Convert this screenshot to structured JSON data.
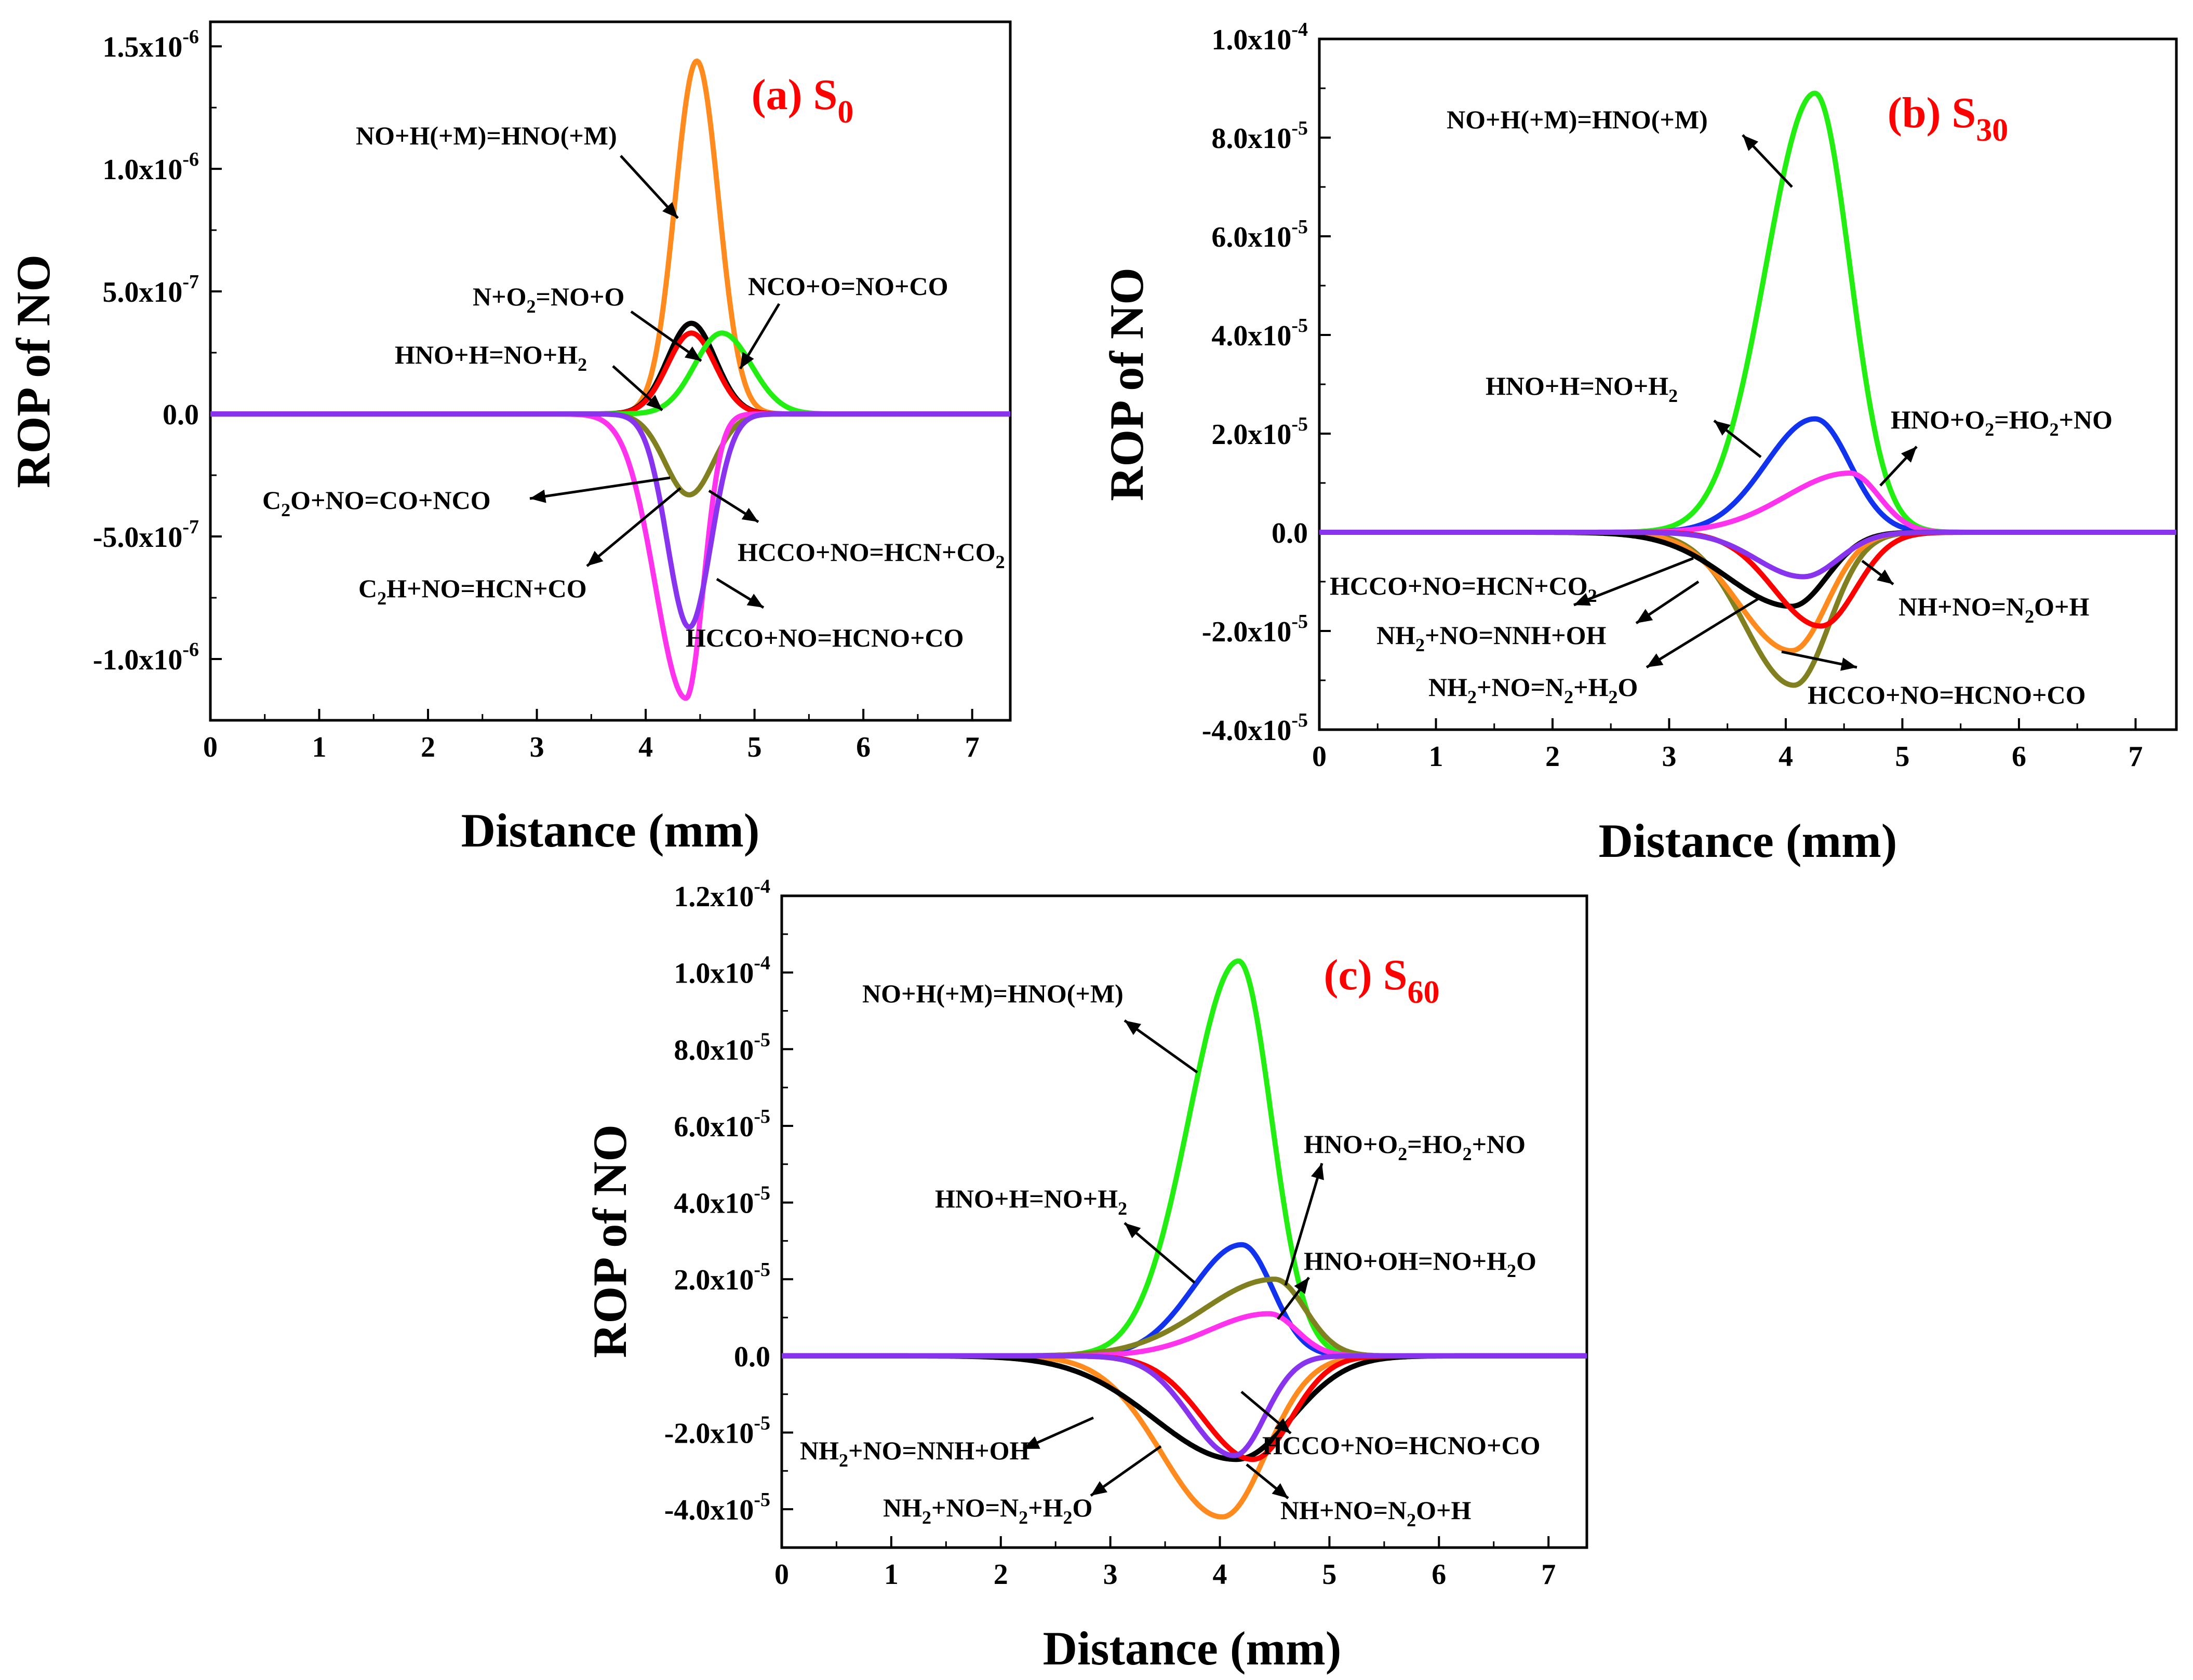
{
  "colors": {
    "black": "#000000",
    "red": "#ff0000",
    "green": "#22ee11",
    "blue": "#1133ee",
    "orange": "#ff8a1e",
    "magenta": "#ff33ee",
    "olive": "#808020",
    "purple": "#8833ee",
    "title": "#ff0000"
  },
  "chart_data": [
    {
      "type": "line",
      "title": "(a) S0",
      "title_main": "(a) S",
      "title_sub": "0",
      "xlabel": "Distance (mm)",
      "ylabel": "ROP of NO",
      "xlim": [
        0,
        7.35
      ],
      "ylim": [
        -1.25e-06,
        1.6e-06
      ],
      "xticks": [
        0,
        1,
        2,
        3,
        4,
        5,
        6,
        7
      ],
      "xtick_labels": [
        "0",
        "1",
        "2",
        "3",
        "4",
        "5",
        "6",
        "7"
      ],
      "yticks": [
        -1e-06,
        -5e-07,
        0,
        5e-07,
        1e-06,
        1.5e-06
      ],
      "ytick_labels": [
        {
          "base": "-1.0x10",
          "exp": "-6"
        },
        {
          "base": "-5.0x10",
          "exp": "-7"
        },
        {
          "base": "0.0",
          "exp": ""
        },
        {
          "base": "5.0x10",
          "exp": "-7"
        },
        {
          "base": "1.0x10",
          "exp": "-6"
        },
        {
          "base": "1.5x10",
          "exp": "-6"
        }
      ],
      "series": [
        {
          "color": "#ff8a1e",
          "peak": 1.44e-06,
          "center": 4.47,
          "width_left": 0.2,
          "width_right": 0.2
        },
        {
          "color": "#000000",
          "peak": 3.7e-07,
          "center": 4.42,
          "width_left": 0.22,
          "width_right": 0.22
        },
        {
          "color": "#ff0000",
          "peak": 3.3e-07,
          "center": 4.42,
          "width_left": 0.22,
          "width_right": 0.22
        },
        {
          "color": "#22ee11",
          "peak": 3.3e-07,
          "center": 4.7,
          "width_left": 0.25,
          "width_right": 0.27
        },
        {
          "color": "#808020",
          "peak": -3.3e-07,
          "center": 4.4,
          "width_left": 0.22,
          "width_right": 0.22
        },
        {
          "color": "#ff33ee",
          "peak": -1.16e-06,
          "center": 4.37,
          "width_left": 0.28,
          "width_right": 0.16
        },
        {
          "color": "#8833ee",
          "peak": -8.7e-07,
          "center": 4.4,
          "width_left": 0.2,
          "width_right": 0.2
        }
      ],
      "annotations": [
        {
          "parts": [
            [
              "NO+H(+M)=HNO(+M)",
              ""
            ]
          ]
        },
        {
          "parts": [
            [
              "N+O",
              ""
            ],
            [
              "2",
              "sub"
            ],
            [
              "=NO+O",
              ""
            ]
          ]
        },
        {
          "parts": [
            [
              "NCO+O=NO+CO",
              ""
            ]
          ]
        },
        {
          "parts": [
            [
              "HNO+H=NO+H",
              ""
            ],
            [
              "2",
              "sub"
            ]
          ]
        },
        {
          "parts": [
            [
              "C",
              ""
            ],
            [
              "2",
              "sub"
            ],
            [
              "O+NO=CO+NCO",
              ""
            ]
          ]
        },
        {
          "parts": [
            [
              "HCCO+NO=HCN+CO",
              ""
            ],
            [
              "2",
              "sub"
            ]
          ]
        },
        {
          "parts": [
            [
              "C",
              ""
            ],
            [
              "2",
              "sub"
            ],
            [
              "H+NO=HCN+CO",
              ""
            ]
          ]
        },
        {
          "parts": [
            [
              "HCCO+NO=HCNO+CO",
              ""
            ]
          ]
        }
      ]
    },
    {
      "type": "line",
      "title": "(b) S30",
      "title_main": "(b) S",
      "title_sub": "30",
      "xlabel": "Distance (mm)",
      "ylabel": "ROP of NO",
      "xlim": [
        0,
        7.35
      ],
      "ylim": [
        -4e-05,
        0.0001
      ],
      "xticks": [
        0,
        1,
        2,
        3,
        4,
        5,
        6,
        7
      ],
      "xtick_labels": [
        "0",
        "1",
        "2",
        "3",
        "4",
        "5",
        "6",
        "7"
      ],
      "yticks": [
        -4e-05,
        -2e-05,
        0,
        2e-05,
        4e-05,
        6e-05,
        8e-05,
        0.0001
      ],
      "ytick_labels": [
        {
          "base": "-4.0x10",
          "exp": "-5"
        },
        {
          "base": "-2.0x10",
          "exp": "-5"
        },
        {
          "base": "0.0",
          "exp": ""
        },
        {
          "base": "2.0x10",
          "exp": "-5"
        },
        {
          "base": "4.0x10",
          "exp": "-5"
        },
        {
          "base": "6.0x10",
          "exp": "-5"
        },
        {
          "base": "8.0x10",
          "exp": "-5"
        },
        {
          "base": "1.0x10",
          "exp": "-4"
        }
      ],
      "series": [
        {
          "color": "#22ee11",
          "peak": 8.9e-05,
          "center": 4.25,
          "width_left": 0.42,
          "width_right": 0.3
        },
        {
          "color": "#1133ee",
          "peak": 2.3e-05,
          "center": 4.25,
          "width_left": 0.42,
          "width_right": 0.3
        },
        {
          "color": "#ff33ee",
          "peak": 1.2e-05,
          "center": 4.55,
          "width_left": 0.55,
          "width_right": 0.25
        },
        {
          "color": "#808020",
          "peak": -3.1e-05,
          "center": 4.07,
          "width_left": 0.42,
          "width_right": 0.3
        },
        {
          "color": "#ff8a1e",
          "peak": -2.4e-05,
          "center": 4.05,
          "width_left": 0.45,
          "width_right": 0.3
        },
        {
          "color": "#000000",
          "peak": -1.5e-05,
          "center": 4.05,
          "width_left": 0.55,
          "width_right": 0.3
        },
        {
          "color": "#ff0000",
          "peak": -1.9e-05,
          "center": 4.3,
          "width_left": 0.4,
          "width_right": 0.3
        },
        {
          "color": "#8833ee",
          "peak": -9e-06,
          "center": 4.15,
          "width_left": 0.4,
          "width_right": 0.3
        }
      ],
      "annotations": [
        {
          "parts": [
            [
              "NO+H(+M)=HNO(+M)",
              ""
            ]
          ]
        },
        {
          "parts": [
            [
              "HNO+H=NO+H",
              ""
            ],
            [
              "2",
              "sub"
            ]
          ]
        },
        {
          "parts": [
            [
              "HNO+O",
              ""
            ],
            [
              "2",
              "sub"
            ],
            [
              "=HO",
              ""
            ],
            [
              "2",
              "sub"
            ],
            [
              "+NO",
              ""
            ]
          ]
        },
        {
          "parts": [
            [
              "HCCO+NO=HCN+CO",
              ""
            ],
            [
              "2",
              "sub"
            ]
          ]
        },
        {
          "parts": [
            [
              "NH+NO=N",
              ""
            ],
            [
              "2",
              "sub"
            ],
            [
              "O+H",
              ""
            ]
          ]
        },
        {
          "parts": [
            [
              "NH",
              ""
            ],
            [
              "2",
              "sub"
            ],
            [
              "+NO=NNH+OH",
              ""
            ]
          ]
        },
        {
          "parts": [
            [
              "NH",
              ""
            ],
            [
              "2",
              "sub"
            ],
            [
              "+NO=N",
              ""
            ],
            [
              "2",
              "sub"
            ],
            [
              "+H",
              ""
            ],
            [
              "2",
              "sub"
            ],
            [
              "O",
              ""
            ]
          ]
        },
        {
          "parts": [
            [
              "HCCO+NO=HCNO+CO",
              ""
            ]
          ]
        }
      ]
    },
    {
      "type": "line",
      "title": "(c) S60",
      "title_main": "(c) S",
      "title_sub": "60",
      "xlabel": "Distance (mm)",
      "ylabel": "ROP of NO",
      "xlim": [
        0,
        7.35
      ],
      "ylim": [
        -5e-05,
        0.00012
      ],
      "xticks": [
        0,
        1,
        2,
        3,
        4,
        5,
        6,
        7
      ],
      "xtick_labels": [
        "0",
        "1",
        "2",
        "3",
        "4",
        "5",
        "6",
        "7"
      ],
      "yticks": [
        -4e-05,
        -2e-05,
        0,
        2e-05,
        4e-05,
        6e-05,
        8e-05,
        0.0001,
        0.00012
      ],
      "ytick_labels": [
        {
          "base": "-4.0x10",
          "exp": "-5"
        },
        {
          "base": "-2.0x10",
          "exp": "-5"
        },
        {
          "base": "0.0",
          "exp": ""
        },
        {
          "base": "2.0x10",
          "exp": "-5"
        },
        {
          "base": "4.0x10",
          "exp": "-5"
        },
        {
          "base": "6.0x10",
          "exp": "-5"
        },
        {
          "base": "8.0x10",
          "exp": "-5"
        },
        {
          "base": "1.0x10",
          "exp": "-4"
        },
        {
          "base": "1.2x10",
          "exp": "-4"
        }
      ],
      "series": [
        {
          "color": "#22ee11",
          "peak": 0.000103,
          "center": 4.17,
          "width_left": 0.45,
          "width_right": 0.3
        },
        {
          "color": "#1133ee",
          "peak": 2.9e-05,
          "center": 4.2,
          "width_left": 0.45,
          "width_right": 0.28
        },
        {
          "color": "#808020",
          "peak": 2e-05,
          "center": 4.5,
          "width_left": 0.65,
          "width_right": 0.28
        },
        {
          "color": "#ff33ee",
          "peak": 1.1e-05,
          "center": 4.45,
          "width_left": 0.55,
          "width_right": 0.25
        },
        {
          "color": "#ff8a1e",
          "peak": -4.2e-05,
          "center": 4.02,
          "width_left": 0.55,
          "width_right": 0.4
        },
        {
          "color": "#000000",
          "peak": -2.7e-05,
          "center": 4.15,
          "width_left": 0.75,
          "width_right": 0.5
        },
        {
          "color": "#ff0000",
          "peak": -2.7e-05,
          "center": 4.3,
          "width_left": 0.45,
          "width_right": 0.35
        },
        {
          "color": "#8833ee",
          "peak": -2.6e-05,
          "center": 4.13,
          "width_left": 0.4,
          "width_right": 0.28
        }
      ],
      "annotations": [
        {
          "parts": [
            [
              "NO+H(+M)=HNO(+M)",
              ""
            ]
          ]
        },
        {
          "parts": [
            [
              "HNO+O",
              ""
            ],
            [
              "2",
              "sub"
            ],
            [
              "=HO",
              ""
            ],
            [
              "2",
              "sub"
            ],
            [
              "+NO",
              ""
            ]
          ]
        },
        {
          "parts": [
            [
              "HNO+H=NO+H",
              ""
            ],
            [
              "2",
              "sub"
            ]
          ]
        },
        {
          "parts": [
            [
              "HNO+OH=NO+H",
              ""
            ],
            [
              "2",
              "sub"
            ],
            [
              "O",
              ""
            ]
          ]
        },
        {
          "parts": [
            [
              "NH",
              ""
            ],
            [
              "2",
              "sub"
            ],
            [
              "+NO=NNH+OH",
              ""
            ]
          ]
        },
        {
          "parts": [
            [
              "HCCO+NO=HCNO+CO",
              ""
            ]
          ]
        },
        {
          "parts": [
            [
              "NH",
              ""
            ],
            [
              "2",
              "sub"
            ],
            [
              "+NO=N",
              ""
            ],
            [
              "2",
              "sub"
            ],
            [
              "+H",
              ""
            ],
            [
              "2",
              "sub"
            ],
            [
              "O",
              ""
            ]
          ]
        },
        {
          "parts": [
            [
              "NH+NO=N",
              ""
            ],
            [
              "2",
              "sub"
            ],
            [
              "O+H",
              ""
            ]
          ]
        }
      ]
    }
  ]
}
